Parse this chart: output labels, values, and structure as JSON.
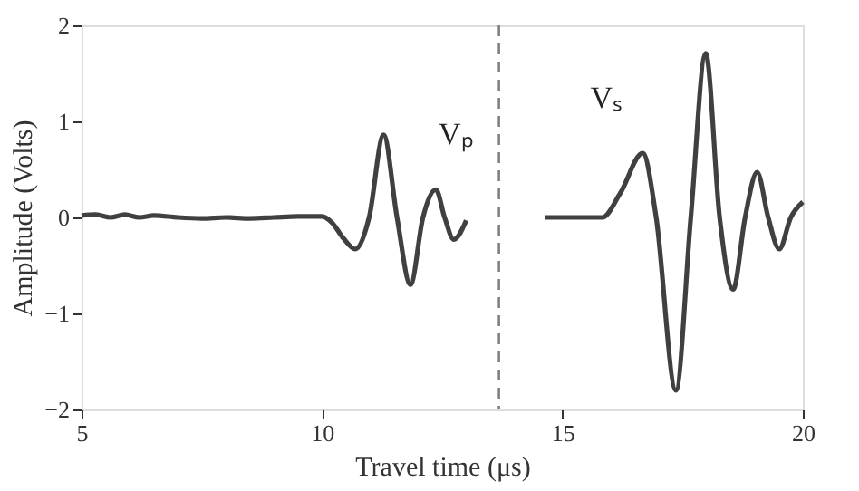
{
  "chart_data": {
    "type": "line",
    "xlabel": "Travel time (μs)",
    "ylabel": "Amplitude (Volts)",
    "xlim": [
      5,
      20
    ],
    "xticks": [
      5,
      10,
      15,
      20
    ],
    "ylim": [
      -2,
      2
    ],
    "yticks": [
      -2,
      -1,
      0,
      1,
      2
    ],
    "grid": false,
    "line_style": "solid",
    "series": [
      {
        "color": "#404040",
        "x": [
          5,
          5.3,
          5.6,
          5.9,
          6.2,
          6.5,
          7,
          7.5,
          8,
          8.5,
          9,
          9.5,
          10,
          10.2,
          10.45,
          10.69,
          10.98,
          11.28,
          11.56,
          11.84,
          12.1,
          12.37,
          12.55,
          12.74,
          13
        ],
        "values": [
          0.02,
          0.03,
          0.0,
          0.03,
          0.0,
          0.02,
          0.0,
          -0.01,
          0.0,
          -0.01,
          0.0,
          0.01,
          0.01,
          -0.05,
          -0.22,
          -0.33,
          0,
          0.86,
          0,
          -0.7,
          0,
          0.29,
          0,
          -0.23,
          -0.03
        ]
      },
      {
        "color": "#404040",
        "x": [
          14.64,
          15.2,
          15.83,
          16.2,
          16.67,
          16.95,
          17.36,
          17.67,
          17.98,
          18.27,
          18.55,
          18.8,
          19.05,
          19.28,
          19.51,
          19.75,
          20
        ],
        "values": [
          0,
          0,
          0,
          0.25,
          0.67,
          0,
          -1.8,
          0,
          1.71,
          0,
          -0.75,
          0,
          0.47,
          0,
          -0.33,
          0,
          0.16
        ]
      }
    ],
    "ref_lines": [
      {
        "axis": "x",
        "value": 13.68,
        "color": "#808080",
        "line_style": "dashed"
      }
    ],
    "annotations": [
      "Vₚ",
      "Vₛ"
    ]
  }
}
